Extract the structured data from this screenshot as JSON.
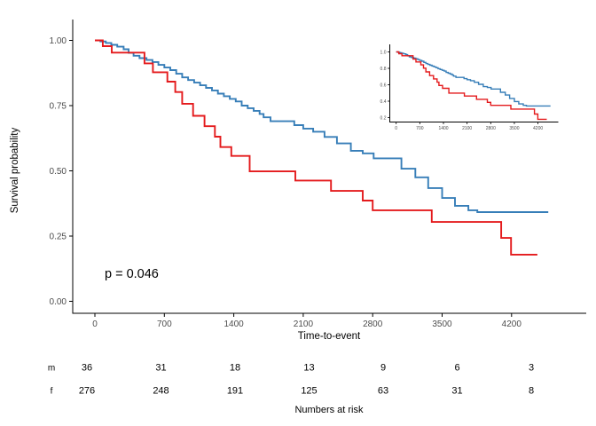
{
  "figure": {
    "p_value_label": "p = 0.046",
    "colors": {
      "male_curve": "#E41A1C",
      "female_curve": "#377EB8",
      "axis_line": "#000000",
      "tick_label": "#4D4D4D",
      "text": "#000000"
    }
  },
  "chart_data": {
    "type": "line",
    "subtype": "kaplan-meier-step",
    "title": "",
    "xlabel": "Time-to-event",
    "ylabel": "Survival probability",
    "annotation": "p = 0.046",
    "grid": false,
    "legend": "none",
    "xlim": [
      0,
      4600
    ],
    "ylim": [
      0,
      1
    ],
    "x_ticks": [
      "0",
      "700",
      "1400",
      "2100",
      "2800",
      "3500",
      "4200"
    ],
    "x_tick_values": [
      0,
      700,
      1400,
      2100,
      2800,
      3500,
      4200
    ],
    "y_ticks": [
      "0.00",
      "0.25",
      "0.50",
      "0.75",
      "1.00"
    ],
    "y_tick_values": [
      0,
      0.25,
      0.5,
      0.75,
      1.0
    ],
    "series": [
      {
        "name": "f",
        "color": "#377EB8",
        "points": [
          [
            0,
            1.0
          ],
          [
            55,
            0.996
          ],
          [
            110,
            0.99
          ],
          [
            165,
            0.983
          ],
          [
            225,
            0.976
          ],
          [
            290,
            0.966
          ],
          [
            340,
            0.952
          ],
          [
            390,
            0.941
          ],
          [
            450,
            0.932
          ],
          [
            520,
            0.925
          ],
          [
            580,
            0.917
          ],
          [
            640,
            0.906
          ],
          [
            700,
            0.896
          ],
          [
            760,
            0.886
          ],
          [
            820,
            0.872
          ],
          [
            880,
            0.858
          ],
          [
            940,
            0.848
          ],
          [
            1000,
            0.838
          ],
          [
            1060,
            0.828
          ],
          [
            1120,
            0.818
          ],
          [
            1180,
            0.808
          ],
          [
            1240,
            0.796
          ],
          [
            1300,
            0.786
          ],
          [
            1360,
            0.776
          ],
          [
            1420,
            0.766
          ],
          [
            1480,
            0.75
          ],
          [
            1540,
            0.74
          ],
          [
            1600,
            0.73
          ],
          [
            1660,
            0.718
          ],
          [
            1700,
            0.705
          ],
          [
            1770,
            0.69
          ],
          [
            2010,
            0.675
          ],
          [
            2100,
            0.662
          ],
          [
            2200,
            0.65
          ],
          [
            2315,
            0.63
          ],
          [
            2440,
            0.605
          ],
          [
            2580,
            0.577
          ],
          [
            2700,
            0.567
          ],
          [
            2810,
            0.548
          ],
          [
            3090,
            0.508
          ],
          [
            3230,
            0.475
          ],
          [
            3360,
            0.434
          ],
          [
            3500,
            0.396
          ],
          [
            3630,
            0.366
          ],
          [
            3765,
            0.349
          ],
          [
            3855,
            0.342
          ],
          [
            4570,
            0.342
          ]
        ]
      },
      {
        "name": "m",
        "color": "#E41A1C",
        "points": [
          [
            0,
            1.0
          ],
          [
            80,
            0.978
          ],
          [
            170,
            0.953
          ],
          [
            500,
            0.912
          ],
          [
            585,
            0.878
          ],
          [
            730,
            0.842
          ],
          [
            810,
            0.802
          ],
          [
            880,
            0.757
          ],
          [
            990,
            0.711
          ],
          [
            1105,
            0.671
          ],
          [
            1210,
            0.631
          ],
          [
            1265,
            0.591
          ],
          [
            1375,
            0.557
          ],
          [
            1560,
            0.498
          ],
          [
            2020,
            0.463
          ],
          [
            2380,
            0.423
          ],
          [
            2700,
            0.386
          ],
          [
            2800,
            0.349
          ],
          [
            3395,
            0.304
          ],
          [
            4095,
            0.243
          ],
          [
            4195,
            0.179
          ],
          [
            4460,
            0.179
          ]
        ]
      }
    ],
    "inset": {
      "x_ticks": [
        "0",
        "700",
        "1400",
        "2100",
        "2800",
        "3500",
        "4200"
      ],
      "x_tick_values": [
        0,
        700,
        1400,
        2100,
        2800,
        3500,
        4200
      ],
      "y_ticks": [
        "0.2",
        "0.4",
        "0.6",
        "0.8",
        "1.0"
      ],
      "y_tick_values": [
        0.2,
        0.4,
        0.6,
        0.8,
        1.0
      ]
    },
    "risk_table": {
      "caption": "Numbers at risk",
      "time_breaks": [
        0,
        700,
        1400,
        2100,
        2800,
        3500,
        4200
      ],
      "rows": [
        {
          "label": "m",
          "values": [
            "36",
            "31",
            "18",
            "13",
            "9",
            "6",
            "3"
          ]
        },
        {
          "label": "f",
          "values": [
            "276",
            "248",
            "191",
            "125",
            "63",
            "31",
            "8"
          ]
        }
      ]
    }
  }
}
